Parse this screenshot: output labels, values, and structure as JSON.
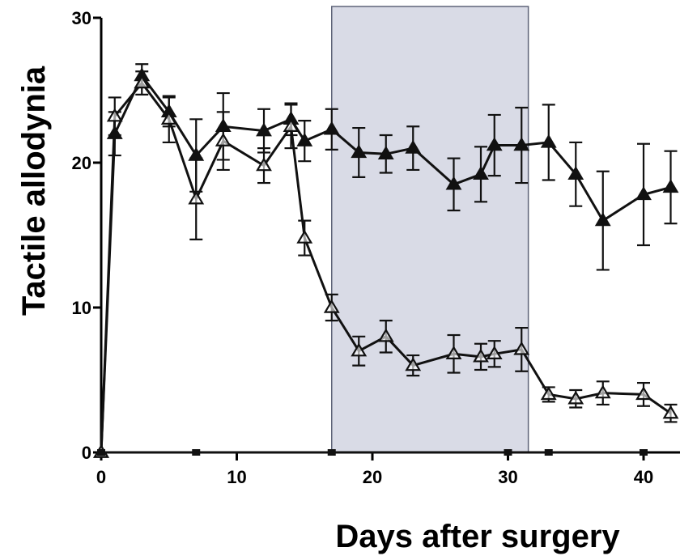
{
  "chart_data": {
    "type": "line",
    "xlabel": "Days after surgery",
    "ylabel": "Tactile allodynia",
    "xlim": [
      0,
      43
    ],
    "ylim": [
      0,
      30
    ],
    "x_ticks": [
      0,
      10,
      20,
      30,
      40
    ],
    "y_ticks": [
      0,
      10,
      20,
      30
    ],
    "shaded_region": {
      "x_start": 17,
      "x_end": 31.5,
      "color": "#d9dbe6",
      "border": "#5f6478"
    },
    "grid": false,
    "legend": "none",
    "series": [
      {
        "marker": "filled-triangle",
        "color": "#111111",
        "points": [
          {
            "x": 0,
            "y": 0,
            "err": 0
          },
          {
            "x": 1,
            "y": 22.0,
            "err": 1.5
          },
          {
            "x": 3,
            "y": 26.0,
            "err": 0.8
          },
          {
            "x": 5,
            "y": 23.5,
            "err": 1.0
          },
          {
            "x": 7,
            "y": 20.5,
            "err": 2.5
          },
          {
            "x": 9,
            "y": 22.5,
            "err": 2.3
          },
          {
            "x": 12,
            "y": 22.2,
            "err": 1.5
          },
          {
            "x": 14,
            "y": 23.0,
            "err": 1.1
          },
          {
            "x": 15,
            "y": 21.5,
            "err": 1.4
          },
          {
            "x": 17,
            "y": 22.3,
            "err": 1.4
          },
          {
            "x": 19,
            "y": 20.7,
            "err": 1.7
          },
          {
            "x": 21,
            "y": 20.6,
            "err": 1.3
          },
          {
            "x": 23,
            "y": 21.0,
            "err": 1.5
          },
          {
            "x": 26,
            "y": 18.5,
            "err": 1.8
          },
          {
            "x": 28,
            "y": 19.2,
            "err": 1.9
          },
          {
            "x": 29,
            "y": 21.2,
            "err": 2.1
          },
          {
            "x": 31,
            "y": 21.2,
            "err": 2.6
          },
          {
            "x": 33,
            "y": 21.4,
            "err": 2.6
          },
          {
            "x": 35,
            "y": 19.2,
            "err": 2.2
          },
          {
            "x": 37,
            "y": 16.0,
            "err": 3.4
          },
          {
            "x": 40,
            "y": 17.8,
            "err": 3.5
          },
          {
            "x": 42,
            "y": 18.3,
            "err": 2.5
          }
        ]
      },
      {
        "marker": "open-triangle",
        "color": "#111111",
        "points": [
          {
            "x": 0,
            "y": 0,
            "err": 0
          },
          {
            "x": 1,
            "y": 23.2,
            "err": 1.3
          },
          {
            "x": 3,
            "y": 25.5,
            "err": 0.8
          },
          {
            "x": 5,
            "y": 23.0,
            "err": 1.6
          },
          {
            "x": 7,
            "y": 17.5,
            "err": 2.8
          },
          {
            "x": 9,
            "y": 21.5,
            "err": 2.0
          },
          {
            "x": 12,
            "y": 19.8,
            "err": 1.2
          },
          {
            "x": 14,
            "y": 22.5,
            "err": 1.5
          },
          {
            "x": 15,
            "y": 14.8,
            "err": 1.2
          },
          {
            "x": 17,
            "y": 10.0,
            "err": 0.9
          },
          {
            "x": 19,
            "y": 7.0,
            "err": 1.0
          },
          {
            "x": 21,
            "y": 8.0,
            "err": 1.1
          },
          {
            "x": 23,
            "y": 6.0,
            "err": 0.7
          },
          {
            "x": 26,
            "y": 6.8,
            "err": 1.3
          },
          {
            "x": 28,
            "y": 6.6,
            "err": 0.9
          },
          {
            "x": 29,
            "y": 6.8,
            "err": 0.9
          },
          {
            "x": 31,
            "y": 7.1,
            "err": 1.5
          },
          {
            "x": 33,
            "y": 4.0,
            "err": 0.5
          },
          {
            "x": 35,
            "y": 3.7,
            "err": 0.6
          },
          {
            "x": 37,
            "y": 4.1,
            "err": 0.8
          },
          {
            "x": 40,
            "y": 4.0,
            "err": 0.8
          },
          {
            "x": 42,
            "y": 2.7,
            "err": 0.6
          }
        ]
      },
      {
        "marker": "square",
        "color": "#111111",
        "points": [
          {
            "x": 0,
            "y": 0
          },
          {
            "x": 7,
            "y": 0
          },
          {
            "x": 17,
            "y": 0
          },
          {
            "x": 30,
            "y": 0
          },
          {
            "x": 33,
            "y": 0
          },
          {
            "x": 40,
            "y": 0
          }
        ]
      }
    ]
  }
}
